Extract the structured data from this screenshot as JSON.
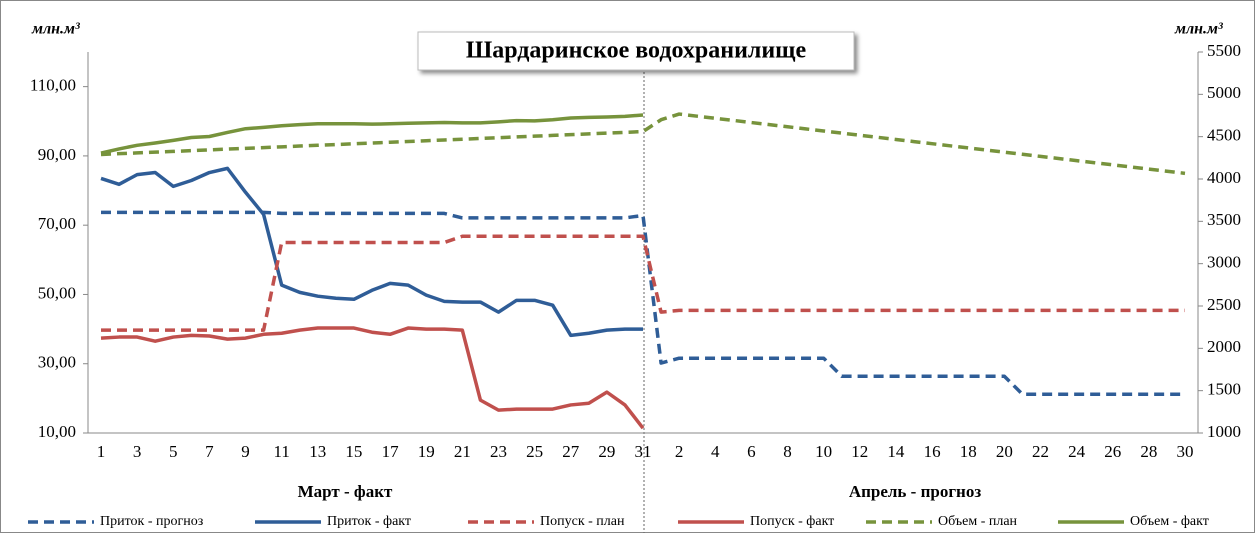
{
  "chart_data": {
    "type": "line",
    "title": "Шардаринское водохранилище",
    "y_label": "млн.м³",
    "y2_label": "млн.м³",
    "sections": [
      "Март - факт",
      "Апрель - прогноз"
    ],
    "categories": [
      "1",
      null,
      "3",
      null,
      "5",
      null,
      "7",
      null,
      "9",
      null,
      "11",
      null,
      "13",
      null,
      "15",
      null,
      "17",
      null,
      "19",
      null,
      "21",
      null,
      "23",
      null,
      "25",
      null,
      "27",
      null,
      "29",
      null,
      "31",
      null,
      "2",
      null,
      "4",
      null,
      "6",
      null,
      "8",
      null,
      "10",
      null,
      "12",
      null,
      "14",
      null,
      "16",
      null,
      "18",
      null,
      "20",
      null,
      "22",
      null,
      "24",
      null,
      "26",
      null,
      "28",
      null,
      "30"
    ],
    "ylim": [
      10,
      120
    ],
    "yticks": [
      {
        "value": 10,
        "label": "10,00"
      },
      {
        "value": 30,
        "label": "30,00"
      },
      {
        "value": 50,
        "label": "50,00"
      },
      {
        "value": 70,
        "label": "70,00"
      },
      {
        "value": 90,
        "label": "90,00"
      },
      {
        "value": 110,
        "label": "110,00"
      }
    ],
    "y2lim": [
      1000,
      5500
    ],
    "y2ticks": [
      1000,
      1500,
      2000,
      2500,
      3000,
      3500,
      4000,
      4500,
      5000,
      5500
    ],
    "legend": "bottom",
    "series": [
      {
        "name": "Приток - прогноз",
        "color": "#2f5d97",
        "style": "dashed",
        "values": [
          73.7,
          73.7,
          73.7,
          73.7,
          73.7,
          73.7,
          73.7,
          73.7,
          73.7,
          73.7,
          73.4,
          73.4,
          73.4,
          73.4,
          73.4,
          73.4,
          73.4,
          73.4,
          73.4,
          73.4,
          72.1,
          72.1,
          72.1,
          72.1,
          72.1,
          72.1,
          72.1,
          72.1,
          72.1,
          72.1,
          72.8,
          30.2,
          31.6,
          31.6,
          31.6,
          31.6,
          31.6,
          31.6,
          31.6,
          31.6,
          31.6,
          26.4,
          26.4,
          26.4,
          26.4,
          26.4,
          26.4,
          26.4,
          26.4,
          26.4,
          26.4,
          21.2,
          21.2,
          21.2,
          21.2,
          21.2,
          21.2,
          21.2,
          21.2,
          21.2,
          21.2
        ]
      },
      {
        "name": "Приток - факт",
        "color": "#2f5d97",
        "style": "solid",
        "values": [
          83.5,
          81.8,
          84.6,
          85.2,
          81.2,
          82.9,
          85.2,
          86.4,
          79.5,
          73.1,
          52.7,
          50.6,
          49.5,
          48.9,
          48.6,
          51.2,
          53.2,
          52.7,
          49.8,
          48,
          47.8,
          47.8,
          44.9,
          48.3,
          48.3,
          46.9,
          38.2,
          38.8,
          39.7,
          40,
          40,
          null,
          null,
          null,
          null,
          null,
          null,
          null,
          null,
          null,
          null,
          null,
          null,
          null,
          null,
          null,
          null,
          null,
          null,
          null,
          null,
          null,
          null,
          null,
          null,
          null,
          null,
          null,
          null,
          null,
          null
        ]
      },
      {
        "name": "Попуск - план",
        "color": "#c0504d",
        "style": "dashed",
        "values": [
          39.7,
          39.7,
          39.7,
          39.7,
          39.7,
          39.7,
          39.7,
          39.7,
          39.7,
          39.7,
          65,
          65,
          65,
          65,
          65,
          65,
          65,
          65,
          65,
          65,
          66.8,
          66.8,
          66.8,
          66.8,
          66.8,
          66.8,
          66.8,
          66.8,
          66.8,
          66.8,
          66.8,
          44.9,
          45.4,
          45.4,
          45.4,
          45.4,
          45.4,
          45.4,
          45.4,
          45.4,
          45.4,
          45.4,
          45.4,
          45.4,
          45.4,
          45.4,
          45.4,
          45.4,
          45.4,
          45.4,
          45.4,
          45.4,
          45.4,
          45.4,
          45.4,
          45.4,
          45.4,
          45.4,
          45.4,
          45.4,
          45.4
        ]
      },
      {
        "name": "Попуск - факт",
        "color": "#c0504d",
        "style": "solid",
        "values": [
          37.4,
          37.7,
          37.7,
          36.5,
          37.7,
          38.2,
          38,
          37.1,
          37.4,
          38.5,
          38.8,
          39.7,
          40.3,
          40.3,
          40.3,
          39.1,
          38.5,
          40.3,
          40,
          40,
          39.7,
          19.5,
          16.6,
          16.9,
          16.9,
          16.9,
          18.1,
          18.6,
          21.8,
          18.1,
          11.4,
          null,
          null,
          null,
          null,
          null,
          null,
          null,
          null,
          null,
          null,
          null,
          null,
          null,
          null,
          null,
          null,
          null,
          null,
          null,
          null,
          null,
          null,
          null,
          null,
          null,
          null,
          null,
          null,
          null,
          null
        ]
      },
      {
        "name": "Объем - план",
        "color": "#77933c",
        "style": "dashed",
        "axis": "y2",
        "values": [
          4290,
          4299,
          4308,
          4317,
          4326,
          4335,
          4344,
          4353,
          4362,
          4371,
          4380,
          4389,
          4398,
          4407,
          4416,
          4425,
          4434,
          4443,
          4452,
          4461,
          4470,
          4479,
          4488,
          4497,
          4506,
          4515,
          4524,
          4533,
          4542,
          4551,
          4560,
          4700,
          4767,
          4742,
          4717,
          4692,
          4667,
          4642,
          4617,
          4592,
          4567,
          4542,
          4517,
          4492,
          4467,
          4442,
          4417,
          4392,
          4367,
          4342,
          4317,
          4292,
          4267,
          4242,
          4217,
          4192,
          4167,
          4142,
          4117,
          4092,
          4067
        ]
      },
      {
        "name": "Объем - факт",
        "color": "#77933c",
        "style": "solid",
        "axis": "y2",
        "values": [
          4306,
          4355,
          4398,
          4425,
          4456,
          4490,
          4502,
          4550,
          4594,
          4610,
          4629,
          4642,
          4652,
          4652,
          4652,
          4648,
          4652,
          4658,
          4663,
          4668,
          4663,
          4663,
          4675,
          4690,
          4686,
          4700,
          4721,
          4728,
          4732,
          4740,
          4756,
          null,
          null,
          null,
          null,
          null,
          null,
          null,
          null,
          null,
          null,
          null,
          null,
          null,
          null,
          null,
          null,
          null,
          null,
          null,
          null,
          null,
          null,
          null,
          null,
          null,
          null,
          null,
          null,
          null,
          null
        ]
      }
    ]
  }
}
